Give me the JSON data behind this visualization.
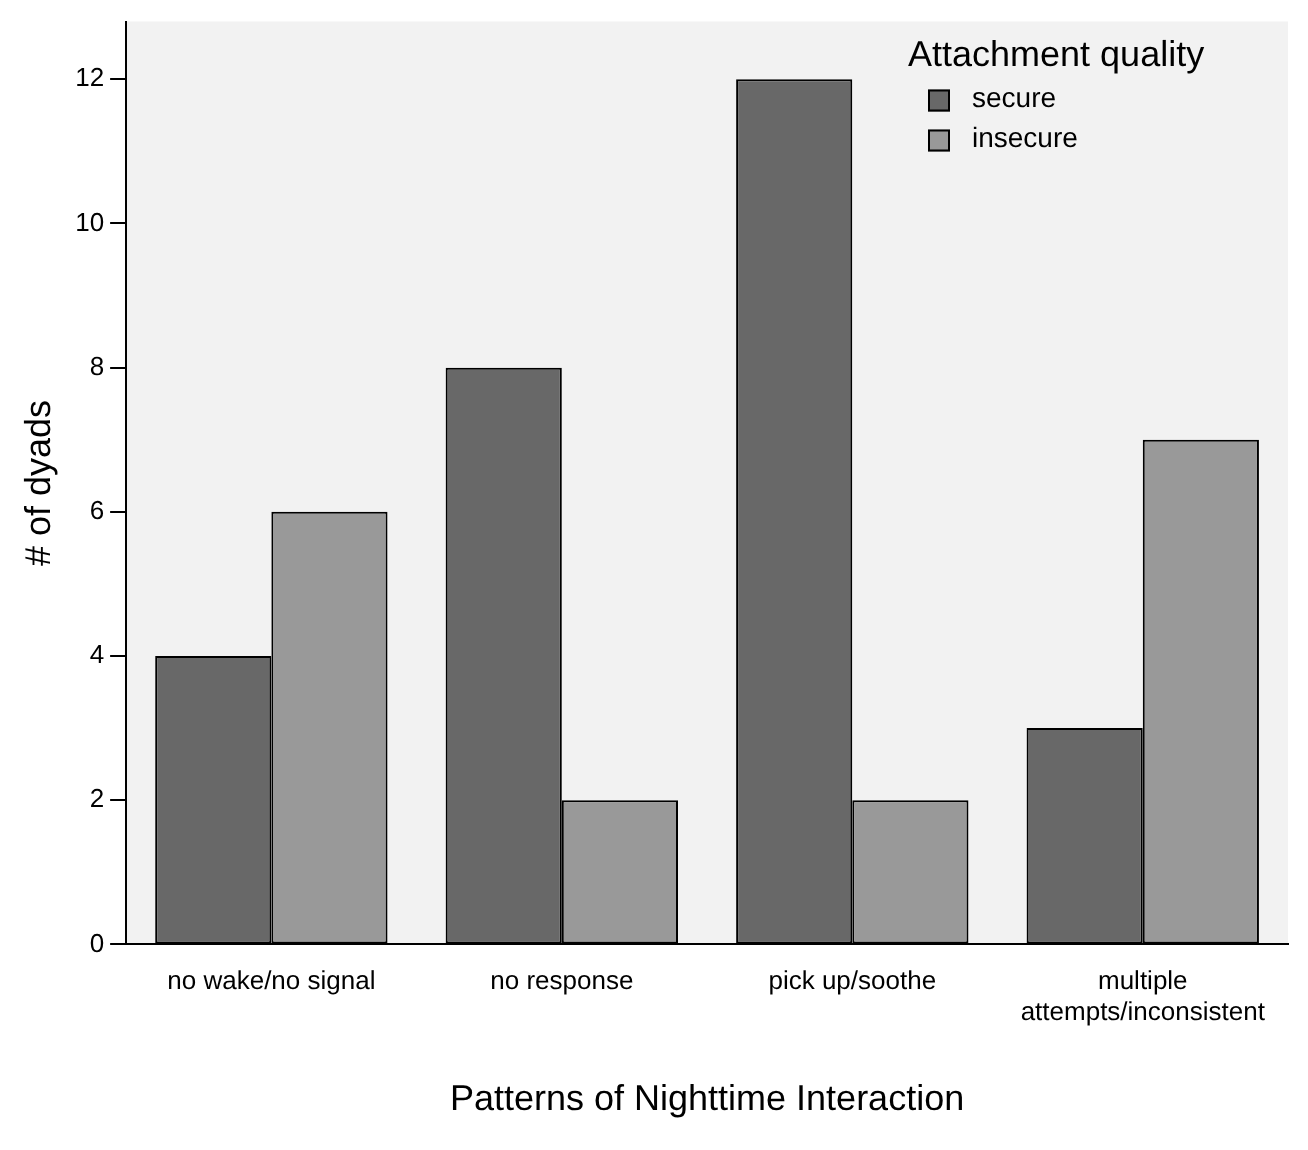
{
  "chart_data": {
    "type": "bar",
    "xlabel": "Patterns of Nighttime Interaction",
    "ylabel": "# of dyads",
    "legend_title": "Attachment quality",
    "categories": [
      "no wake/no signal",
      "no response",
      "pick up/soothe",
      "multiple attempts/inconsistent"
    ],
    "series": [
      {
        "name": "secure",
        "color": "#686868",
        "values": [
          4,
          8,
          12,
          3
        ]
      },
      {
        "name": "insecure",
        "color": "#999999",
        "values": [
          6,
          2,
          2,
          7
        ]
      }
    ],
    "ylim": [
      0,
      12.8
    ],
    "yticks": [
      0,
      2,
      4,
      6,
      8,
      10,
      12
    ],
    "grid": false,
    "legend": "top right"
  }
}
